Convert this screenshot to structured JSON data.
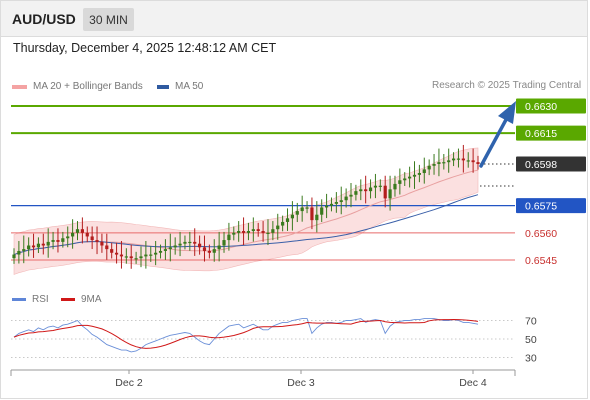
{
  "header": {
    "symbol": "AUD/USD",
    "timeframe": "30 MIN"
  },
  "datetime": "Thursday, December 4, 2025 12:48:12 AM CET",
  "legend": {
    "ma20": "MA 20 + Bollinger Bands",
    "ma50": "MA 50",
    "copyright": "Research © 2025 Trading Central"
  },
  "rsi_legend": {
    "rsi": "RSI",
    "ma9": "9MA"
  },
  "colors": {
    "green_level": "#5aa800",
    "blue_level": "#2255c4",
    "red_level": "#e86a6a",
    "current_price": "#333333",
    "candle_up": "#3a7a1e",
    "candle_down": "#b31d1d",
    "bollinger": "#f9d6d6",
    "ma20": "#e8a0a0",
    "ma50": "#3a5fa8",
    "rsi": "#6a8fd8",
    "ma9": "#d01818",
    "arrow": "#2f63ad"
  },
  "chart_data": [
    {
      "type": "candlestick",
      "title": "AUD/USD 30 MIN",
      "x_ticks": [
        "Dec 2",
        "Dec 3",
        "Dec 4"
      ],
      "y_range": [
        0.6538,
        0.6634
      ],
      "levels": [
        {
          "label": "0.6630",
          "value": 0.663,
          "kind": "resistance"
        },
        {
          "label": "0.6615",
          "value": 0.6615,
          "kind": "resistance"
        },
        {
          "label": "0.6598",
          "value": 0.6598,
          "kind": "current"
        },
        {
          "label": "0.6575",
          "value": 0.6575,
          "kind": "pivot"
        },
        {
          "label": "0.6560",
          "value": 0.656,
          "kind": "support"
        },
        {
          "label": "0.6545",
          "value": 0.6545,
          "kind": "support"
        }
      ],
      "close_series": [
        0.6548,
        0.655,
        0.6551,
        0.6553,
        0.6552,
        0.6554,
        0.6553,
        0.6555,
        0.6556,
        0.6555,
        0.6557,
        0.6558,
        0.656,
        0.6562,
        0.656,
        0.6558,
        0.6556,
        0.6555,
        0.6553,
        0.6551,
        0.6549,
        0.6548,
        0.6547,
        0.6547,
        0.6546,
        0.6546,
        0.6547,
        0.6548,
        0.6548,
        0.6549,
        0.655,
        0.6551,
        0.6552,
        0.6553,
        0.6554,
        0.6555,
        0.6555,
        0.6554,
        0.6552,
        0.655,
        0.6549,
        0.6551,
        0.6553,
        0.6556,
        0.6559,
        0.656,
        0.6561,
        0.656,
        0.6561,
        0.6562,
        0.6561,
        0.656,
        0.656,
        0.6562,
        0.6564,
        0.6566,
        0.6568,
        0.657,
        0.6572,
        0.6574,
        0.6574,
        0.6567,
        0.657,
        0.6574,
        0.6575,
        0.6576,
        0.6577,
        0.6578,
        0.658,
        0.6581,
        0.6583,
        0.6584,
        0.6583,
        0.6585,
        0.6586,
        0.6586,
        0.6579,
        0.6584,
        0.6587,
        0.6589,
        0.659,
        0.6591,
        0.6592,
        0.6593,
        0.6595,
        0.6597,
        0.6598,
        0.6599,
        0.6599,
        0.66,
        0.6601,
        0.6601,
        0.66,
        0.66,
        0.6599,
        0.6598
      ]
    },
    {
      "type": "line",
      "title": "RSI",
      "series": [
        {
          "name": "RSI"
        },
        {
          "name": "9MA"
        }
      ],
      "y_ticks": [
        70,
        50,
        30
      ],
      "y_range": [
        20,
        80
      ],
      "rsi_series": [
        52,
        56,
        58,
        60,
        58,
        62,
        60,
        63,
        64,
        62,
        65,
        66,
        68,
        70,
        64,
        60,
        55,
        52,
        48,
        44,
        42,
        40,
        38,
        38,
        36,
        37,
        40,
        44,
        46,
        48,
        50,
        52,
        54,
        55,
        56,
        57,
        56,
        52,
        48,
        45,
        44,
        50,
        56,
        60,
        64,
        65,
        66,
        62,
        64,
        66,
        63,
        60,
        60,
        64,
        66,
        68,
        68,
        70,
        71,
        72,
        72,
        56,
        62,
        66,
        68,
        68,
        67,
        68,
        70,
        70,
        71,
        72,
        68,
        70,
        71,
        70,
        56,
        64,
        68,
        69,
        70,
        70,
        71,
        71,
        72,
        72,
        72,
        71,
        70,
        70,
        71,
        70,
        68,
        68,
        67,
        66
      ]
    }
  ]
}
